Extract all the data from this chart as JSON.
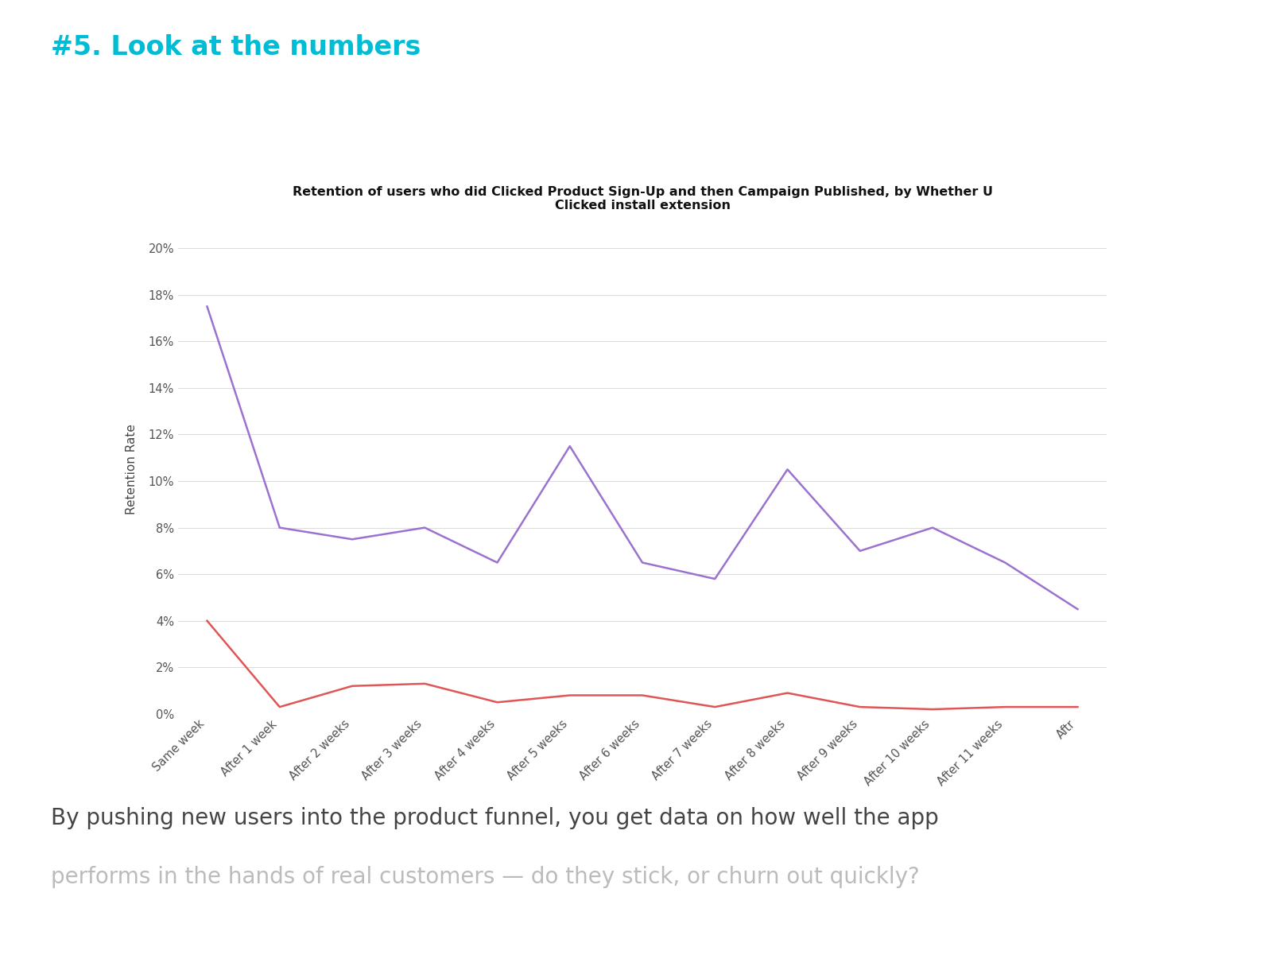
{
  "title": "Retention of users who did Clicked Product Sign-Up and then Campaign Published, by Whether U\nClicked install extension",
  "ylabel": "Retention Rate",
  "heading": "#5. Look at the numbers",
  "heading_color": "#00BCD4",
  "x_labels": [
    "Same week",
    "After 1 week",
    "After 2 weeks",
    "After 3 weeks",
    "After 4 weeks",
    "After 5 weeks",
    "After 6 weeks",
    "After 7 weeks",
    "After 8 weeks",
    "After 9 weeks",
    "After 10 weeks",
    "After 11 weeks",
    "Aftr"
  ],
  "purple_values": [
    17.5,
    8.0,
    7.5,
    8.0,
    6.5,
    11.5,
    6.5,
    5.8,
    10.5,
    7.0,
    8.0,
    6.5,
    4.5
  ],
  "red_values": [
    4.0,
    0.3,
    1.2,
    1.3,
    0.5,
    0.8,
    0.8,
    0.3,
    0.9,
    0.3,
    0.2,
    0.3,
    0.3
  ],
  "purple_color": "#9B72CF",
  "red_color": "#E05555",
  "background_color": "#FFFFFF",
  "grid_color": "#DDDDDD",
  "ylim": [
    0,
    21
  ],
  "yticks": [
    0,
    2,
    4,
    6,
    8,
    10,
    12,
    14,
    16,
    18,
    20
  ],
  "footer_text_line1": "By pushing new users into the product funnel, you get data on how well the app",
  "footer_text_line2": "performs in the hands of real customers — do they stick, or churn out quickly?",
  "footer_color": "#444444",
  "footer_color2": "#BBBBBB"
}
